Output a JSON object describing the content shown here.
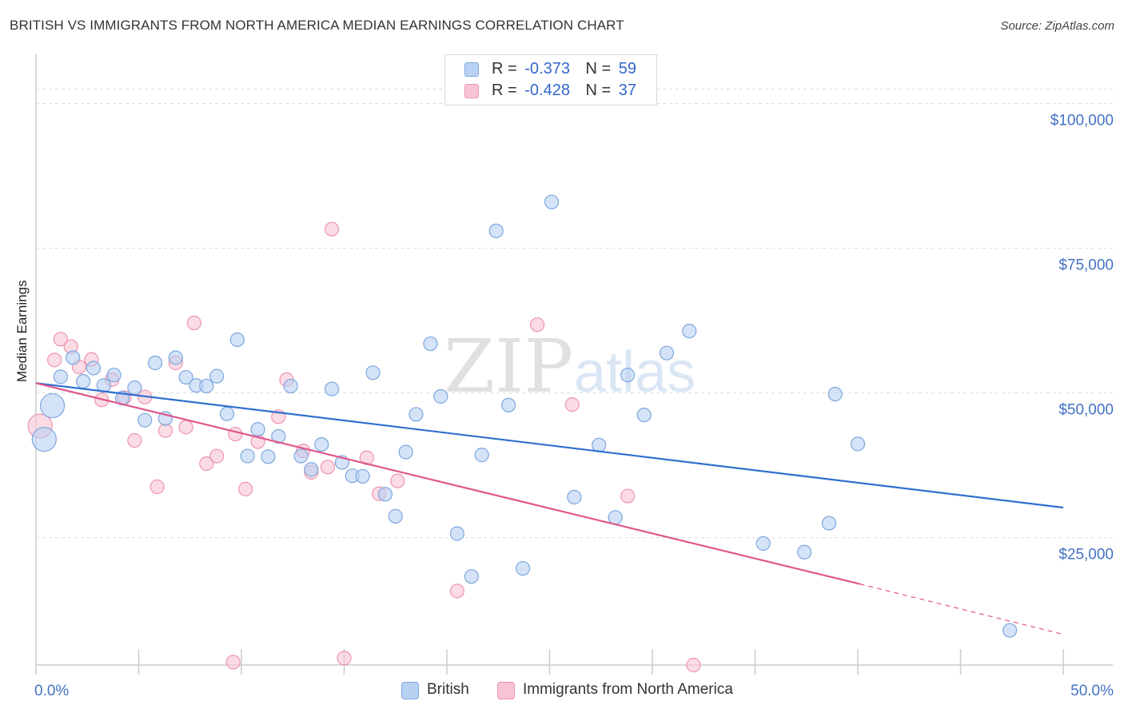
{
  "title": "BRITISH VS IMMIGRANTS FROM NORTH AMERICA MEDIAN EARNINGS CORRELATION CHART",
  "source": "Source: ZipAtlas.com",
  "watermark": {
    "zip": "ZIP",
    "atlas": "atlas"
  },
  "colors": {
    "british_fill": "#b8d1f2",
    "british_stroke": "#7ea7de",
    "british_line": "#2f6fcf",
    "immig_fill": "#f8c4d4",
    "immig_stroke": "#ee93b0",
    "immig_line": "#e0588c",
    "grid": "#dcdcdc",
    "tick_text": "#4472c4"
  },
  "legend": {
    "rows": [
      {
        "r_label": "R =",
        "r_value": "-0.373",
        "n_label": "N =",
        "n_value": "59"
      },
      {
        "r_label": "R =",
        "r_value": "-0.428",
        "n_label": "N =",
        "n_value": "37"
      }
    ],
    "bottom": [
      "British",
      "Immigrants from North America"
    ]
  },
  "chart_data": {
    "type": "scatter",
    "title": "BRITISH VS IMMIGRANTS FROM NORTH AMERICA MEDIAN EARNINGS CORRELATION CHART",
    "xlabel": "",
    "ylabel": "Median Earnings",
    "xlim": [
      0,
      50
    ],
    "ylim": [
      3000,
      108500
    ],
    "x_tick_labels": [
      "0.0%",
      "50.0%"
    ],
    "y_ticks": [
      {
        "value": 100000,
        "label": "$100,000"
      },
      {
        "value": 75000,
        "label": "$75,000"
      },
      {
        "value": 50000,
        "label": "$50,000"
      },
      {
        "value": 25000,
        "label": "$25,000"
      }
    ],
    "series": [
      {
        "name": "British",
        "r": -0.373,
        "n": 59,
        "trend": {
          "x0": 0,
          "y0": 51700,
          "x1": 50,
          "y1": 30200
        },
        "points": [
          {
            "x": 0.4,
            "y": 42000,
            "big": true
          },
          {
            "x": 0.8,
            "y": 47800,
            "big": true
          },
          {
            "x": 1.2,
            "y": 52800
          },
          {
            "x": 1.8,
            "y": 56100
          },
          {
            "x": 2.3,
            "y": 52000
          },
          {
            "x": 2.8,
            "y": 54300
          },
          {
            "x": 3.3,
            "y": 51300
          },
          {
            "x": 3.8,
            "y": 53100
          },
          {
            "x": 4.2,
            "y": 49100
          },
          {
            "x": 4.8,
            "y": 50900
          },
          {
            "x": 5.3,
            "y": 45300
          },
          {
            "x": 5.8,
            "y": 55200
          },
          {
            "x": 6.3,
            "y": 45600
          },
          {
            "x": 6.8,
            "y": 56100
          },
          {
            "x": 7.3,
            "y": 52700
          },
          {
            "x": 7.8,
            "y": 51300
          },
          {
            "x": 8.3,
            "y": 51200
          },
          {
            "x": 8.8,
            "y": 52900
          },
          {
            "x": 9.3,
            "y": 46400
          },
          {
            "x": 9.8,
            "y": 59200
          },
          {
            "x": 10.3,
            "y": 39100
          },
          {
            "x": 10.8,
            "y": 43700
          },
          {
            "x": 11.3,
            "y": 39000
          },
          {
            "x": 11.8,
            "y": 42500
          },
          {
            "x": 12.4,
            "y": 51200
          },
          {
            "x": 12.9,
            "y": 39100
          },
          {
            "x": 13.4,
            "y": 36800
          },
          {
            "x": 13.9,
            "y": 41100
          },
          {
            "x": 14.4,
            "y": 50700
          },
          {
            "x": 14.9,
            "y": 38000
          },
          {
            "x": 15.4,
            "y": 35700
          },
          {
            "x": 15.9,
            "y": 35600
          },
          {
            "x": 16.4,
            "y": 53500
          },
          {
            "x": 17.0,
            "y": 32500
          },
          {
            "x": 17.5,
            "y": 28700
          },
          {
            "x": 18.0,
            "y": 39800
          },
          {
            "x": 18.5,
            "y": 46300
          },
          {
            "x": 19.2,
            "y": 58500
          },
          {
            "x": 19.7,
            "y": 49400
          },
          {
            "x": 20.5,
            "y": 25700
          },
          {
            "x": 21.2,
            "y": 18300
          },
          {
            "x": 21.7,
            "y": 39300
          },
          {
            "x": 22.4,
            "y": 78000
          },
          {
            "x": 23.0,
            "y": 47900
          },
          {
            "x": 23.7,
            "y": 19700
          },
          {
            "x": 25.1,
            "y": 83000
          },
          {
            "x": 26.2,
            "y": 32000
          },
          {
            "x": 27.4,
            "y": 41000
          },
          {
            "x": 28.2,
            "y": 28500
          },
          {
            "x": 28.8,
            "y": 53100
          },
          {
            "x": 29.6,
            "y": 46200
          },
          {
            "x": 30.7,
            "y": 56900
          },
          {
            "x": 31.8,
            "y": 60700
          },
          {
            "x": 35.4,
            "y": 24000
          },
          {
            "x": 37.4,
            "y": 22500
          },
          {
            "x": 38.6,
            "y": 27500
          },
          {
            "x": 38.9,
            "y": 49800
          },
          {
            "x": 40.0,
            "y": 41200
          },
          {
            "x": 47.4,
            "y": 9000
          }
        ]
      },
      {
        "name": "Immigrants from North America",
        "r": -0.428,
        "n": 37,
        "trend": {
          "x0": 0,
          "y0": 51700,
          "x1": 40.1,
          "y1": 17000,
          "dash_x1": 50,
          "dash_y1": 8300
        },
        "points": [
          {
            "x": 0.2,
            "y": 44300,
            "big": true
          },
          {
            "x": 0.9,
            "y": 55700
          },
          {
            "x": 1.2,
            "y": 59300
          },
          {
            "x": 1.7,
            "y": 58000
          },
          {
            "x": 2.1,
            "y": 54500
          },
          {
            "x": 2.7,
            "y": 55800
          },
          {
            "x": 3.2,
            "y": 48800
          },
          {
            "x": 3.7,
            "y": 52300
          },
          {
            "x": 4.3,
            "y": 49200
          },
          {
            "x": 4.8,
            "y": 41800
          },
          {
            "x": 5.3,
            "y": 49300
          },
          {
            "x": 5.9,
            "y": 33800
          },
          {
            "x": 6.3,
            "y": 43500
          },
          {
            "x": 6.8,
            "y": 55200
          },
          {
            "x": 7.3,
            "y": 44100
          },
          {
            "x": 7.7,
            "y": 62100
          },
          {
            "x": 8.3,
            "y": 37800
          },
          {
            "x": 8.8,
            "y": 39100
          },
          {
            "x": 9.6,
            "y": 3500
          },
          {
            "x": 9.7,
            "y": 42900
          },
          {
            "x": 10.2,
            "y": 33400
          },
          {
            "x": 10.8,
            "y": 41600
          },
          {
            "x": 11.8,
            "y": 45900
          },
          {
            "x": 12.2,
            "y": 52300
          },
          {
            "x": 13.0,
            "y": 40000
          },
          {
            "x": 13.4,
            "y": 36300
          },
          {
            "x": 14.2,
            "y": 37200
          },
          {
            "x": 14.4,
            "y": 78300
          },
          {
            "x": 15.0,
            "y": 4200
          },
          {
            "x": 16.1,
            "y": 38800
          },
          {
            "x": 16.7,
            "y": 32600
          },
          {
            "x": 17.6,
            "y": 34800
          },
          {
            "x": 20.5,
            "y": 15800
          },
          {
            "x": 24.4,
            "y": 61800
          },
          {
            "x": 26.1,
            "y": 48000
          },
          {
            "x": 28.8,
            "y": 32200
          },
          {
            "x": 32.0,
            "y": 3000
          }
        ]
      }
    ]
  }
}
